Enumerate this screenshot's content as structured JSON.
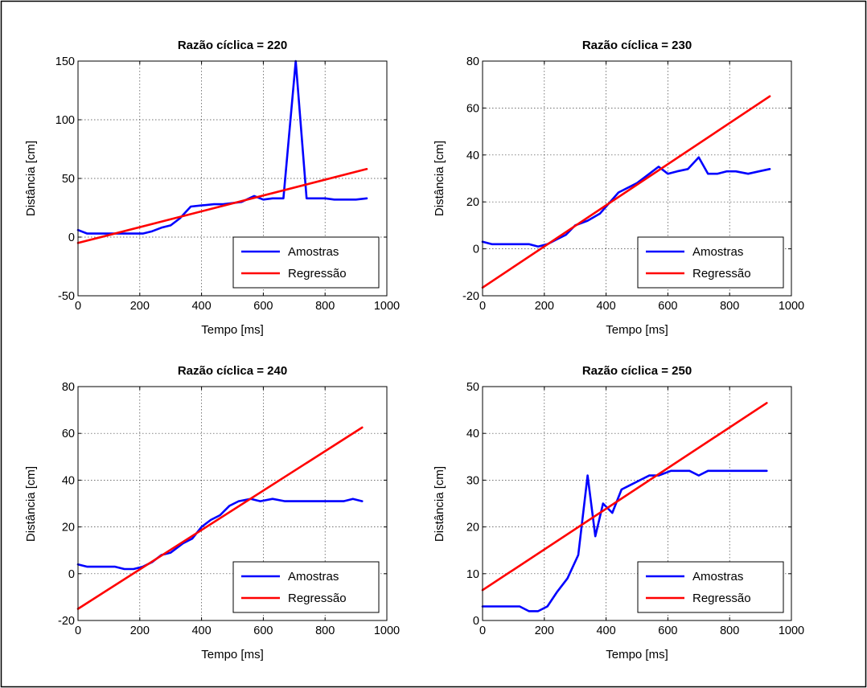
{
  "figure": {
    "background": "#ffffff",
    "border_color": "#000000"
  },
  "chart_data": [
    {
      "type": "line",
      "title": "Razão cíclica = 220",
      "xlabel": "Tempo [ms]",
      "ylabel": "Distância [cm]",
      "xlim": [
        0,
        1000
      ],
      "ylim": [
        -50,
        150
      ],
      "xticks": [
        0,
        200,
        400,
        600,
        800,
        1000
      ],
      "yticks": [
        -50,
        0,
        50,
        100,
        150
      ],
      "grid": true,
      "legend_position": "bottom-right",
      "series": [
        {
          "name": "Amostras",
          "color": "#0000ff",
          "x": [
            0,
            30,
            60,
            90,
            120,
            150,
            180,
            210,
            240,
            270,
            300,
            330,
            365,
            400,
            440,
            470,
            500,
            530,
            570,
            600,
            630,
            665,
            705,
            740,
            770,
            800,
            830,
            860,
            900,
            935
          ],
          "y": [
            6,
            3,
            3,
            3,
            3,
            3,
            3,
            3,
            5,
            8,
            10,
            16,
            26,
            27,
            28,
            28,
            29,
            30,
            35,
            32,
            33,
            33,
            150,
            33,
            33,
            33,
            32,
            32,
            32,
            33
          ]
        },
        {
          "name": "Regressão",
          "color": "#ff0000",
          "x": [
            0,
            935
          ],
          "y": [
            -5,
            58
          ]
        }
      ]
    },
    {
      "type": "line",
      "title": "Razão cíclica = 230",
      "xlabel": "Tempo [ms]",
      "ylabel": "Distância [cm]",
      "xlim": [
        0,
        1000
      ],
      "ylim": [
        -20,
        80
      ],
      "xticks": [
        0,
        200,
        400,
        600,
        800,
        1000
      ],
      "yticks": [
        -20,
        0,
        20,
        40,
        60,
        80
      ],
      "grid": true,
      "legend_position": "bottom-right",
      "series": [
        {
          "name": "Amostras",
          "color": "#0000ff",
          "x": [
            0,
            30,
            60,
            90,
            120,
            150,
            180,
            210,
            240,
            270,
            300,
            340,
            380,
            440,
            500,
            540,
            570,
            600,
            630,
            665,
            700,
            730,
            760,
            790,
            820,
            860,
            895,
            930
          ],
          "y": [
            3,
            2,
            2,
            2,
            2,
            2,
            1,
            2,
            4,
            6,
            10,
            12,
            15,
            24,
            28,
            32,
            35,
            32,
            33,
            34,
            39,
            32,
            32,
            33,
            33,
            32,
            33,
            34
          ]
        },
        {
          "name": "Regressão",
          "color": "#ff0000",
          "x": [
            0,
            930
          ],
          "y": [
            -16.5,
            65
          ]
        }
      ]
    },
    {
      "type": "line",
      "title": "Razão cíclica = 240",
      "xlabel": "Tempo [ms]",
      "ylabel": "Distância [cm]",
      "xlim": [
        0,
        1000
      ],
      "ylim": [
        -20,
        80
      ],
      "xticks": [
        0,
        200,
        400,
        600,
        800,
        1000
      ],
      "yticks": [
        -20,
        0,
        20,
        40,
        60,
        80
      ],
      "grid": true,
      "legend_position": "bottom-right",
      "series": [
        {
          "name": "Amostras",
          "color": "#0000ff",
          "x": [
            0,
            30,
            60,
            90,
            120,
            150,
            180,
            210,
            240,
            270,
            300,
            340,
            370,
            400,
            430,
            460,
            490,
            520,
            560,
            590,
            630,
            670,
            710,
            750,
            790,
            830,
            860,
            890,
            920
          ],
          "y": [
            4,
            3,
            3,
            3,
            3,
            2,
            2,
            3,
            5,
            8,
            9,
            13,
            15,
            20,
            23,
            25,
            29,
            31,
            32,
            31,
            32,
            31,
            31,
            31,
            31,
            31,
            31,
            32,
            31
          ]
        },
        {
          "name": "Regressão",
          "color": "#ff0000",
          "x": [
            0,
            920
          ],
          "y": [
            -15,
            62.5
          ]
        }
      ]
    },
    {
      "type": "line",
      "title": "Razão cíclica = 250",
      "xlabel": "Tempo [ms]",
      "ylabel": "Distância [cm]",
      "xlim": [
        0,
        1000
      ],
      "ylim": [
        0,
        50
      ],
      "xticks": [
        0,
        200,
        400,
        600,
        800,
        1000
      ],
      "yticks": [
        0,
        10,
        20,
        30,
        40,
        50
      ],
      "grid": true,
      "legend_position": "bottom-right",
      "series": [
        {
          "name": "Amostras",
          "color": "#0000ff",
          "x": [
            0,
            30,
            60,
            90,
            120,
            150,
            180,
            210,
            240,
            275,
            310,
            340,
            365,
            390,
            420,
            450,
            480,
            510,
            540,
            570,
            610,
            640,
            670,
            700,
            730,
            760,
            800,
            840,
            880,
            920
          ],
          "y": [
            3,
            3,
            3,
            3,
            3,
            2,
            2,
            3,
            6,
            9,
            14,
            31,
            18,
            25,
            23,
            28,
            29,
            30,
            31,
            31,
            32,
            32,
            32,
            31,
            32,
            32,
            32,
            32,
            32,
            32
          ]
        },
        {
          "name": "Regressão",
          "color": "#ff0000",
          "x": [
            0,
            920
          ],
          "y": [
            6.5,
            46.5
          ]
        }
      ]
    }
  ]
}
